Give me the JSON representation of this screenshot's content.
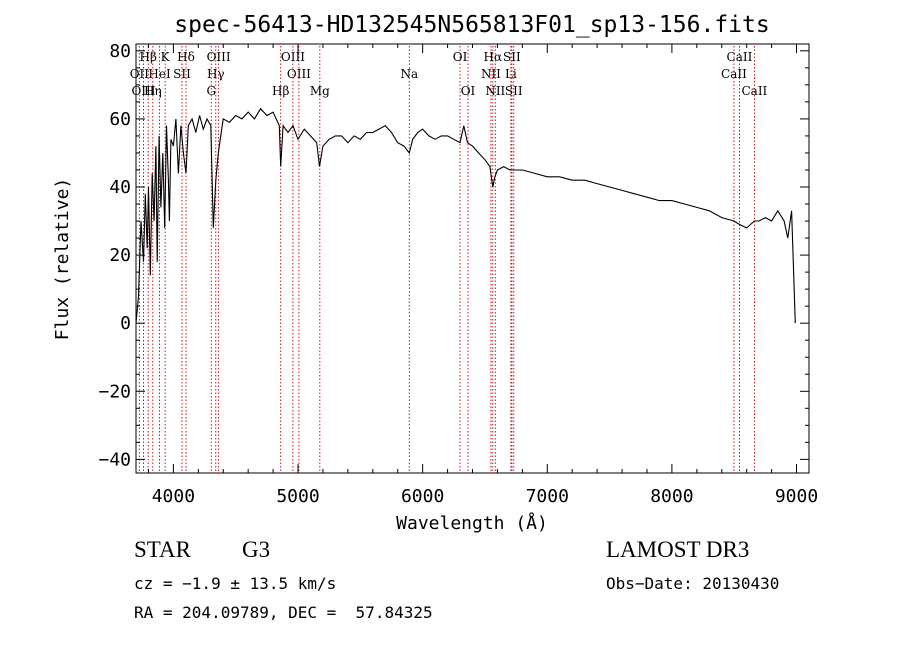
{
  "chart_data": {
    "type": "line",
    "title": "spec-56413-HD132545N565813F01_sp13-156.fits",
    "xlabel": "Wavelength (Å)",
    "ylabel": "Flux (relative)",
    "xlim": [
      3700,
      9100
    ],
    "ylim": [
      -44,
      82
    ],
    "xticks": [
      4000,
      5000,
      6000,
      7000,
      8000,
      9000
    ],
    "yticks": [
      -40,
      -20,
      0,
      20,
      40,
      60,
      80
    ],
    "grid": false,
    "series": [
      {
        "name": "flux",
        "x": [
          3700,
          3720,
          3740,
          3760,
          3775,
          3790,
          3800,
          3815,
          3830,
          3845,
          3860,
          3870,
          3885,
          3900,
          3915,
          3930,
          3945,
          3960,
          3968,
          3980,
          4000,
          4020,
          4040,
          4060,
          4080,
          4101,
          4120,
          4150,
          4180,
          4210,
          4240,
          4270,
          4300,
          4320,
          4340,
          4360,
          4400,
          4450,
          4500,
          4550,
          4600,
          4650,
          4700,
          4750,
          4800,
          4850,
          4861,
          4880,
          4920,
          4960,
          5000,
          5050,
          5100,
          5150,
          5172,
          5200,
          5250,
          5300,
          5350,
          5400,
          5450,
          5500,
          5550,
          5600,
          5650,
          5700,
          5750,
          5800,
          5850,
          5893,
          5920,
          5960,
          6000,
          6050,
          6100,
          6150,
          6200,
          6250,
          6300,
          6330,
          6360,
          6400,
          6450,
          6500,
          6540,
          6563,
          6580,
          6600,
          6650,
          6700,
          6750,
          6800,
          6900,
          7000,
          7100,
          7200,
          7300,
          7400,
          7500,
          7600,
          7700,
          7800,
          7900,
          8000,
          8100,
          8200,
          8300,
          8400,
          8498,
          8542,
          8600,
          8662,
          8700,
          8750,
          8800,
          8850,
          8900,
          8930,
          8960,
          8990
        ],
        "y": [
          0,
          8,
          30,
          18,
          38,
          22,
          40,
          14,
          44,
          30,
          52,
          18,
          55,
          34,
          50,
          28,
          58,
          42,
          30,
          54,
          52,
          60,
          44,
          58,
          50,
          44,
          58,
          60,
          56,
          61,
          57,
          60,
          58,
          28,
          42,
          50,
          60,
          59,
          61,
          60,
          62,
          60,
          63,
          61,
          62,
          58,
          46,
          58,
          56,
          58,
          54,
          57,
          55,
          53,
          46,
          52,
          54,
          55,
          55,
          53,
          55,
          54,
          56,
          56,
          57,
          58,
          56,
          53,
          52,
          50,
          54,
          56,
          57,
          55,
          54,
          55,
          55,
          54,
          53,
          58,
          53,
          52,
          50,
          48,
          46,
          40,
          43,
          45,
          46,
          45,
          45,
          45,
          44,
          43,
          43,
          42,
          42,
          41,
          40,
          39,
          38,
          37,
          36,
          36,
          35,
          34,
          33,
          31,
          30,
          29,
          28,
          30,
          30,
          31,
          30,
          33,
          30,
          25,
          33,
          0
        ]
      }
    ],
    "lines": [
      {
        "name": "Hβ",
        "x": 3798,
        "row": 1
      },
      {
        "name": "OII",
        "x": 3727,
        "row": 2
      },
      {
        "name": "OIII",
        "x": 3760,
        "row": 3
      },
      {
        "name": "Hη",
        "x": 3835,
        "row": 3
      },
      {
        "name": "K",
        "x": 3934,
        "row": 1
      },
      {
        "name": "HeI",
        "x": 3889,
        "row": 2
      },
      {
        "name": "SII",
        "x": 4069,
        "row": 2
      },
      {
        "name": "Hδ",
        "x": 4101,
        "row": 1
      },
      {
        "name": "OIII",
        "x": 4363,
        "row": 1
      },
      {
        "name": "Hγ",
        "x": 4340,
        "row": 2
      },
      {
        "name": "G",
        "x": 4304,
        "row": 3
      },
      {
        "name": "Hβ",
        "x": 4861,
        "row": 3
      },
      {
        "name": "OIII",
        "x": 4959,
        "row": 1
      },
      {
        "name": "OIII",
        "x": 5007,
        "row": 2
      },
      {
        "name": "Mg",
        "x": 5175,
        "row": 3
      },
      {
        "name": "Na",
        "x": 5893,
        "row": 2
      },
      {
        "name": "OI",
        "x": 6300,
        "row": 1
      },
      {
        "name": "OI",
        "x": 6364,
        "row": 3
      },
      {
        "name": "Hα",
        "x": 6563,
        "row": 1
      },
      {
        "name": "NII",
        "x": 6548,
        "row": 2
      },
      {
        "name": "NII",
        "x": 6583,
        "row": 3
      },
      {
        "name": "SII",
        "x": 6716,
        "row": 1
      },
      {
        "name": "Li",
        "x": 6708,
        "row": 2
      },
      {
        "name": "SII",
        "x": 6731,
        "row": 3
      },
      {
        "name": "CaII",
        "x": 8498,
        "row": 2
      },
      {
        "name": "CaII",
        "x": 8542,
        "row": 1
      },
      {
        "name": "CaII",
        "x": 8662,
        "row": 3
      }
    ]
  },
  "info": {
    "object_class": "STAR",
    "subclass": "G3",
    "cz": "cz = −1.9 ± 13.5 km/s",
    "coords": "RA = 204.09789, DEC =  57.84325",
    "survey": "LAMOST DR3",
    "obs_date": "Obs−Date: 20130430"
  },
  "colors": {
    "spectrum": "#000000",
    "line_marker": "#c00000",
    "axes": "#000000"
  }
}
